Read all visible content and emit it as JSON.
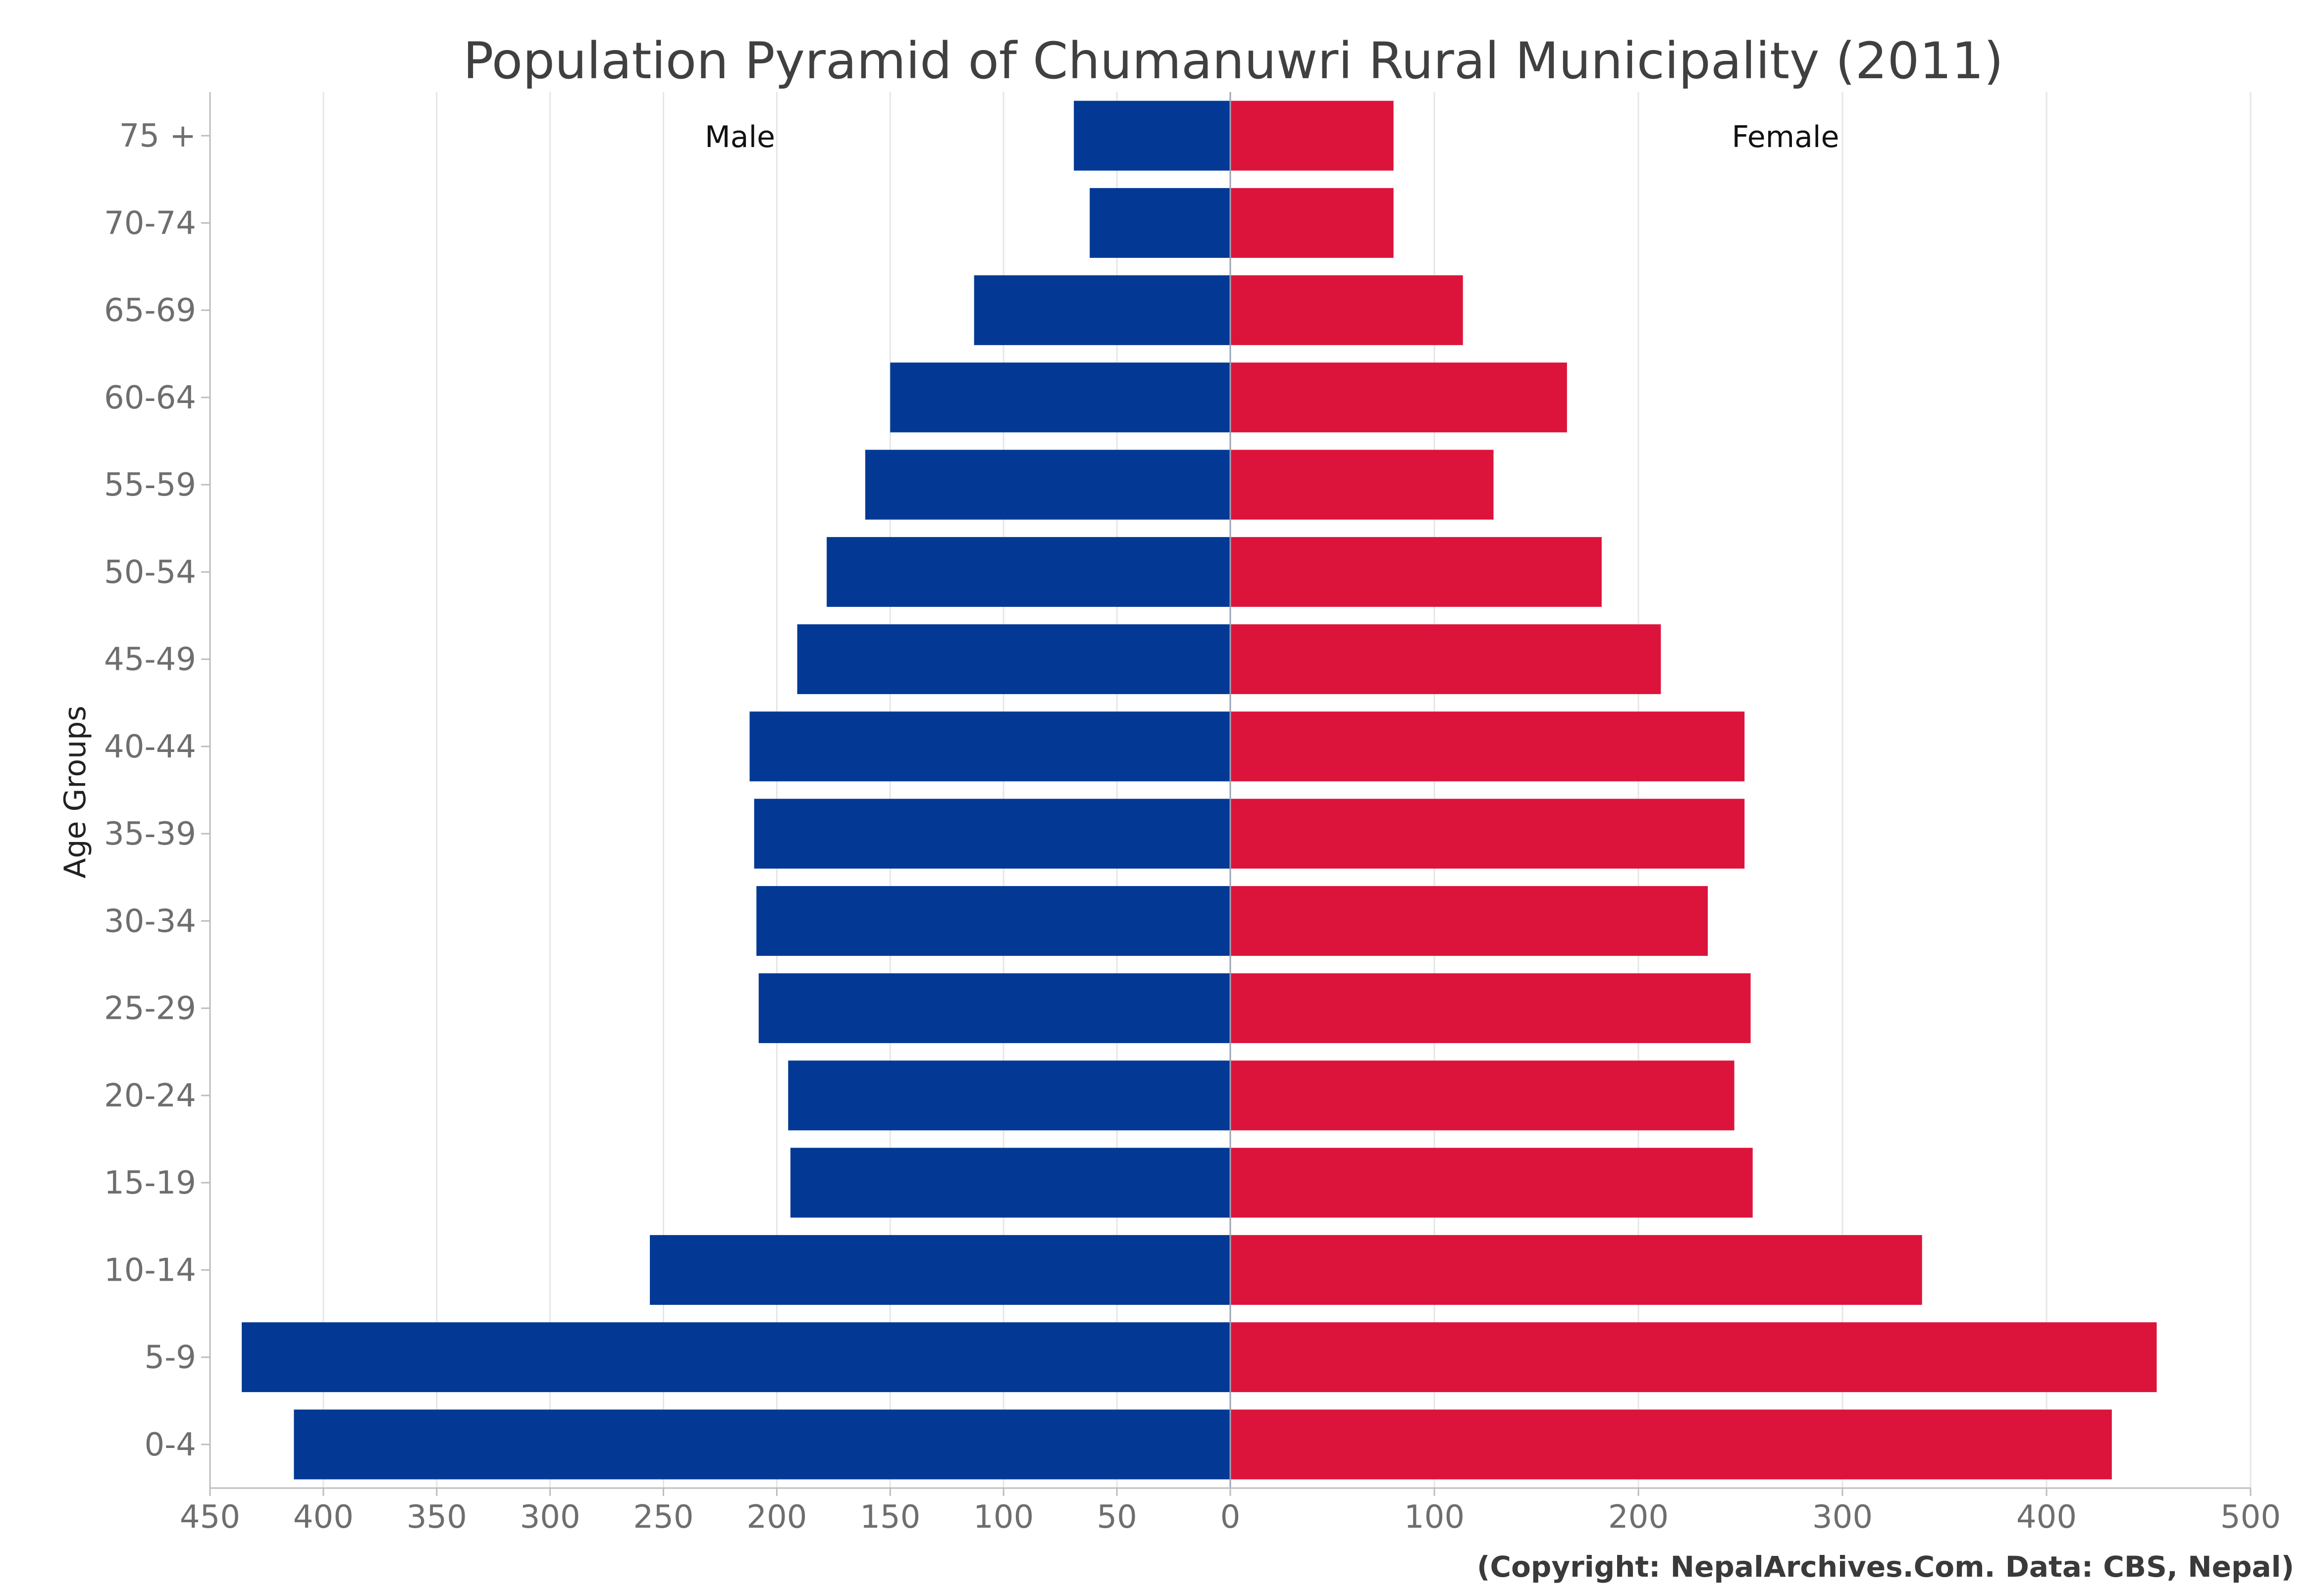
{
  "chart_data": {
    "type": "bar",
    "orientation": "horizontal-pyramid",
    "title": "Population Pyramid of Chumanuwri Rural Municipality (2011)",
    "ylabel": "Age Groups",
    "credit": "(Copyright: NepalArchives.Com. Data: CBS, Nepal)",
    "categories": [
      "75 +",
      "70-74",
      "65-69",
      "60-64",
      "55-59",
      "50-54",
      "45-49",
      "40-44",
      "35-39",
      "30-34",
      "25-29",
      "20-24",
      "15-19",
      "10-14",
      "5-9",
      "0-4"
    ],
    "series": [
      {
        "name": "Male",
        "color": "#033994",
        "values": [
          69,
          62,
          113,
          150,
          161,
          178,
          191,
          212,
          210,
          209,
          208,
          195,
          194,
          256,
          436,
          413
        ]
      },
      {
        "name": "Female",
        "color": "#dc143c",
        "values": [
          80,
          80,
          114,
          165,
          129,
          182,
          211,
          252,
          252,
          234,
          255,
          247,
          256,
          339,
          454,
          432
        ]
      }
    ],
    "male_axis": {
      "ticks": [
        450,
        400,
        350,
        300,
        250,
        200,
        150,
        100,
        50,
        0
      ],
      "range": [
        450,
        0
      ]
    },
    "female_axis": {
      "ticks": [
        100,
        200,
        300,
        400,
        500
      ],
      "range": [
        0,
        500
      ]
    },
    "grid": true
  }
}
